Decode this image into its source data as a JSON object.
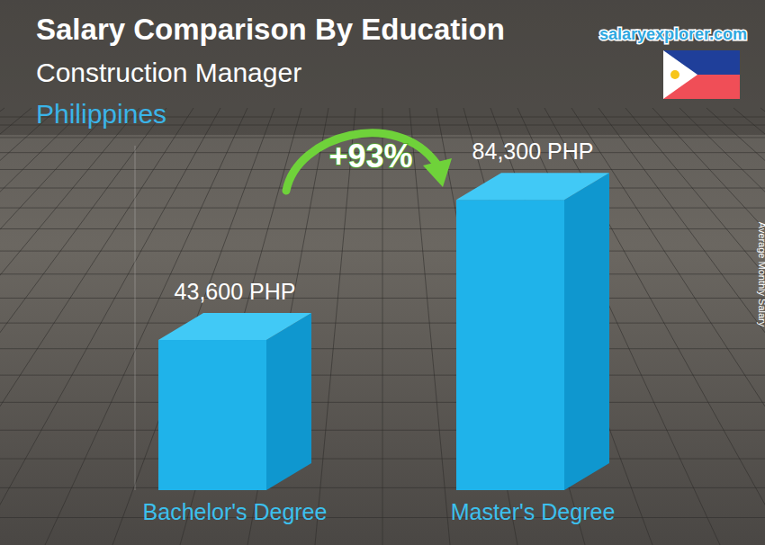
{
  "chart_data": {
    "type": "bar",
    "title": "Salary Comparison By Education",
    "subtitle": [
      "Construction Manager",
      "Philippines"
    ],
    "source": "salaryexplorer.com",
    "ylabel": "Average Monthly Salary",
    "annotations": [
      {
        "text": "+93%"
      }
    ],
    "categories": [
      "Bachelor's Degree",
      "Master's Degree"
    ],
    "values": [
      43600,
      84300
    ],
    "value_labels": [
      "43,600 PHP",
      "84,300 PHP"
    ],
    "color": "#1fb3ea",
    "ylim": [
      0,
      100000
    ],
    "tick_labels": false,
    "data_labels": true,
    "grid": false
  }
}
